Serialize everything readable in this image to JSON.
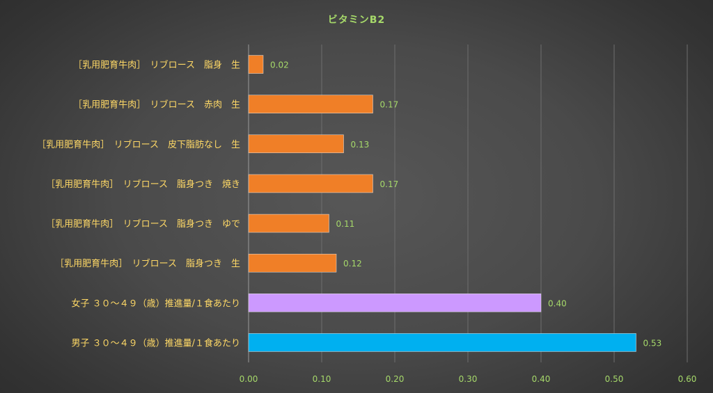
{
  "chart_data": {
    "type": "bar",
    "orientation": "horizontal",
    "title": "ビタミンB2",
    "categories": [
      "［乳用肥育牛肉］　リブロース　脂身　生",
      "［乳用肥育牛肉］　リブロース　赤肉　生",
      "［乳用肥育牛肉］　リブロース　皮下脂肪なし　生",
      "［乳用肥育牛肉］　リブロース　脂身つき　焼き",
      "［乳用肥育牛肉］　リブロース　脂身つき　ゆで",
      "［乳用肥育牛肉］　リブロース　脂身つき　生",
      "女子 ３０～４９（歳）推進量/１食あたり",
      "男子 ３０～４９（歳）推進量/１食あたり"
    ],
    "values": [
      0.02,
      0.17,
      0.13,
      0.17,
      0.11,
      0.12,
      0.4,
      0.53
    ],
    "value_labels": [
      "0.02",
      "0.17",
      "0.13",
      "0.17",
      "0.11",
      "0.12",
      "0.40",
      "0.53"
    ],
    "bar_colors": [
      "#f07f27",
      "#f07f27",
      "#f07f27",
      "#f07f27",
      "#f07f27",
      "#f07f27",
      "#cc99ff",
      "#00b0f0"
    ],
    "xlim": [
      0,
      0.6
    ],
    "xticks": [
      "0.00",
      "0.10",
      "0.20",
      "0.30",
      "0.40",
      "0.50",
      "0.60"
    ],
    "grid": true,
    "legend": "none"
  },
  "colors": {
    "title": "#a6d96a",
    "category_label": "#ffd966",
    "tick_label": "#a6d96a",
    "data_label": "#a6d96a",
    "gridline": "#6e6e6e",
    "axis": "#9a9a9a"
  }
}
